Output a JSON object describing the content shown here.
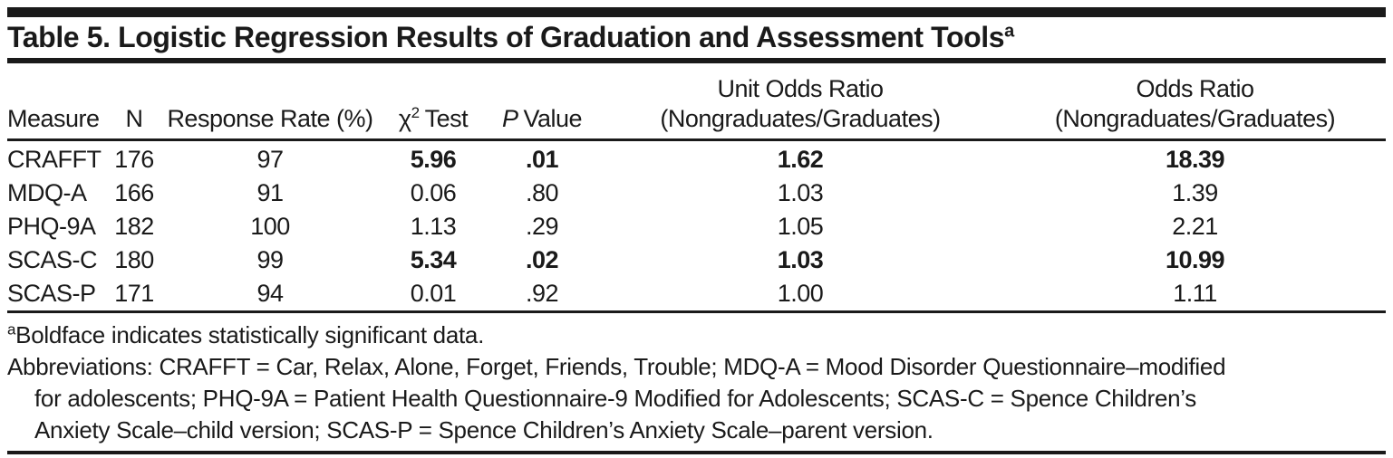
{
  "title": {
    "text": "Table 5. Logistic Regression Results of Graduation and Assessment Tools",
    "superscript": "a"
  },
  "table": {
    "headers": {
      "measure": "Measure",
      "n": "N",
      "response_rate": "Response Rate (%)",
      "chi2": {
        "base": "χ",
        "sup": "2",
        "rest": "Test"
      },
      "p": {
        "italic": "P",
        "rest": "Value"
      },
      "unit_odds_ratio": {
        "line1": "Unit Odds Ratio",
        "line2": "(Nongraduates/Graduates)"
      },
      "odds_ratio": {
        "line1": "Odds Ratio",
        "line2": "(Nongraduates/Graduates)"
      }
    },
    "rows": [
      {
        "measure": "CRAFFT",
        "n": "176",
        "response_rate": "97",
        "chi2": "5.96",
        "p": ".01",
        "unit_odds_ratio": "1.62",
        "odds_ratio": "18.39",
        "significant": true
      },
      {
        "measure": "MDQ-A",
        "n": "166",
        "response_rate": "91",
        "chi2": "0.06",
        "p": ".80",
        "unit_odds_ratio": "1.03",
        "odds_ratio": "1.39",
        "significant": false
      },
      {
        "measure": "PHQ-9A",
        "n": "182",
        "response_rate": "100",
        "chi2": "1.13",
        "p": ".29",
        "unit_odds_ratio": "1.05",
        "odds_ratio": "2.21",
        "significant": false
      },
      {
        "measure": "SCAS-C",
        "n": "180",
        "response_rate": "99",
        "chi2": "5.34",
        "p": ".02",
        "unit_odds_ratio": "1.03",
        "odds_ratio": "10.99",
        "significant": true
      },
      {
        "measure": "SCAS-P",
        "n": "171",
        "response_rate": "94",
        "chi2": "0.01",
        "p": ".92",
        "unit_odds_ratio": "1.00",
        "odds_ratio": "1.11",
        "significant": false
      }
    ]
  },
  "footnotes": {
    "a": {
      "sup": "a",
      "text": "Boldface indicates statistically significant data."
    },
    "abbreviations_lines": [
      "Abbreviations: CRAFFT = Car, Relax, Alone, Forget, Friends, Trouble; MDQ-A = Mood Disorder Questionnaire–modified",
      "for adolescents; PHQ-9A = Patient Health Questionnaire-9 Modified for Adolescents; SCAS-C = Spence Children’s",
      "Anxiety Scale–child version; SCAS-P = Spence Children’s Anxiety Scale–parent version."
    ]
  },
  "colors": {
    "text": "#1a1a1a",
    "background": "#ffffff",
    "rule": "#1a1a1a"
  }
}
